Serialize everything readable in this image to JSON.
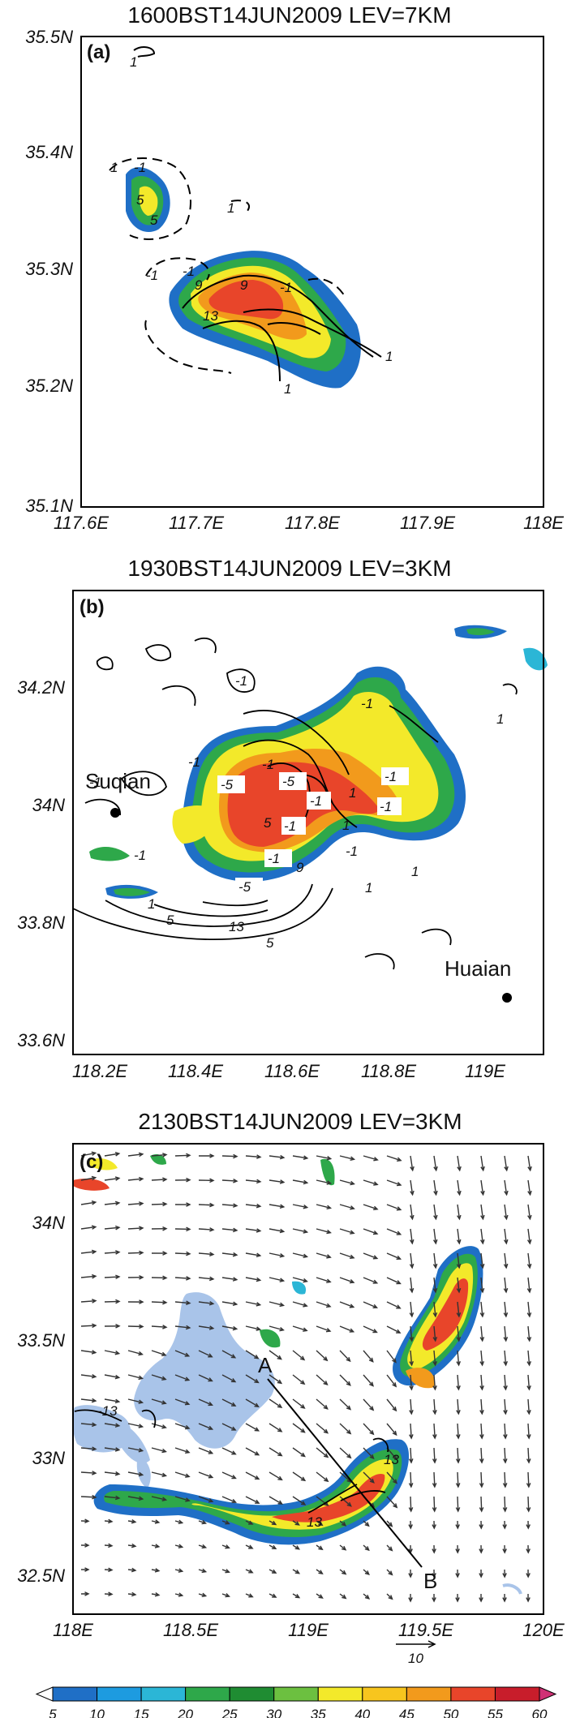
{
  "panels": [
    {
      "label": "(a)",
      "title": "1600BST14JUN2009    LEV=7KM",
      "xticks": [
        "117.6E",
        "117.7E",
        "117.8E",
        "117.9E",
        "118E"
      ],
      "yticks": [
        "35.5N",
        "35.4N",
        "35.3N",
        "35.2N",
        "35.1N"
      ],
      "contour_labels": [
        "1",
        "-1",
        "1",
        "5",
        "5",
        "-1",
        "1",
        "-1",
        "9",
        "9",
        "-1",
        "13",
        "1",
        "1"
      ]
    },
    {
      "label": "(b)",
      "title": "1930BST14JUN2009    LEV=3KM",
      "xticks": [
        "118.2E",
        "118.4E",
        "118.6E",
        "118.8E",
        "119E"
      ],
      "yticks": [
        "34.2N",
        "34N",
        "33.8N",
        "33.6N"
      ],
      "stations": [
        "Suqian",
        "Huaian"
      ],
      "contour_labels": [
        "-1",
        "-1",
        "-1",
        "1",
        "-1",
        "-5",
        "-1",
        "-5",
        "-1",
        "1",
        "-1",
        "5",
        "-1",
        "1",
        "-1",
        "-1",
        "1",
        "1",
        "-1",
        "-1",
        "-5",
        "9",
        "1",
        "5",
        "13",
        "5"
      ]
    },
    {
      "label": "(c)",
      "title": "2130BST14JUN2009    LEV=3KM",
      "xticks": [
        "118E",
        "118.5E",
        "119E",
        "119.5E",
        "120E"
      ],
      "yticks": [
        "34N",
        "33.5N",
        "33N",
        "32.5N"
      ],
      "section_points": [
        "A",
        "B"
      ],
      "contour_labels": [
        "-13",
        "13",
        "13"
      ],
      "vector_reference": "10"
    }
  ],
  "colorbar": {
    "ticks": [
      "5",
      "10",
      "15",
      "20",
      "25",
      "30",
      "35",
      "40",
      "45",
      "50",
      "55",
      "60"
    ],
    "colors": [
      "#ffffff",
      "#1f6fc6",
      "#1d9be0",
      "#2bb6d6",
      "#2ea84a",
      "#1f8c32",
      "#6cc040",
      "#f3e92a",
      "#f7c51e",
      "#f29a1c",
      "#e8452a",
      "#c81d2b",
      "#d03075"
    ]
  },
  "palette": {
    "blue": "#1f6fc6",
    "cyan": "#2bb6d6",
    "green": "#2ea84a",
    "yellow": "#f3e92a",
    "orange": "#f29a1c",
    "red": "#e8452a",
    "darkred": "#c81d2b",
    "landmask": "#a9c4e9"
  }
}
